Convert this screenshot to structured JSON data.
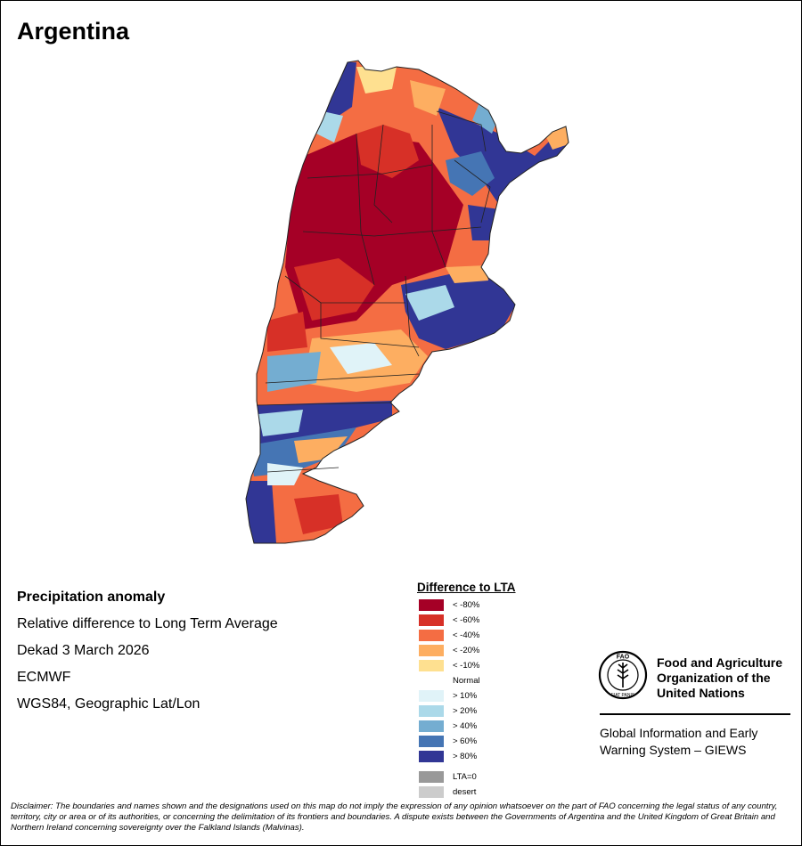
{
  "title": "Argentina",
  "info": {
    "heading": "Precipitation anomaly",
    "subtitle": "Relative difference to Long Term Average",
    "period": "Dekad 3 March 2026",
    "model": "ECMWF",
    "projection": "WGS84, Geographic Lat/Lon"
  },
  "legend": {
    "title": "Difference to LTA",
    "items": [
      {
        "label": "< -80%",
        "color": "#a50026"
      },
      {
        "label": "< -60%",
        "color": "#d73027"
      },
      {
        "label": "< -40%",
        "color": "#f46d43"
      },
      {
        "label": "< -20%",
        "color": "#fdae61"
      },
      {
        "label": "< -10%",
        "color": "#fee090"
      },
      {
        "label": "Normal",
        "color": "#ffffff"
      },
      {
        "label": "> 10%",
        "color": "#e0f3f8"
      },
      {
        "label": "> 20%",
        "color": "#abd9e9"
      },
      {
        "label": "> 40%",
        "color": "#74add1"
      },
      {
        "label": "> 60%",
        "color": "#4575b4"
      },
      {
        "label": "> 80%",
        "color": "#313695"
      }
    ],
    "extra": [
      {
        "label": "LTA=0",
        "color": "#999999"
      },
      {
        "label": "desert",
        "color": "#cccccc"
      }
    ]
  },
  "org": {
    "logo_text": "FAO",
    "logo_motto": "FIAT PANIS",
    "name_line1": "Food and Agriculture",
    "name_line2": "Organization of the",
    "name_line3": "United Nations",
    "system_line1": "Global Information and Early",
    "system_line2": "Warning System – GIEWS"
  },
  "disclaimer": {
    "label": "Disclaimer:",
    "text": " The boundaries and names shown and the designations used on this map do not imply the expression of any opinion whatsoever on the part of FAO concerning the legal status of any country, territory, city or area or of its authorities, or concerning the delimitation of its frontiers and boundaries. A dispute exists between the Governments of Argentina and the United Kingdom of Great Britain and Northern Ireland concerning sovereignty over the Falkland Islands (Malvinas)."
  }
}
